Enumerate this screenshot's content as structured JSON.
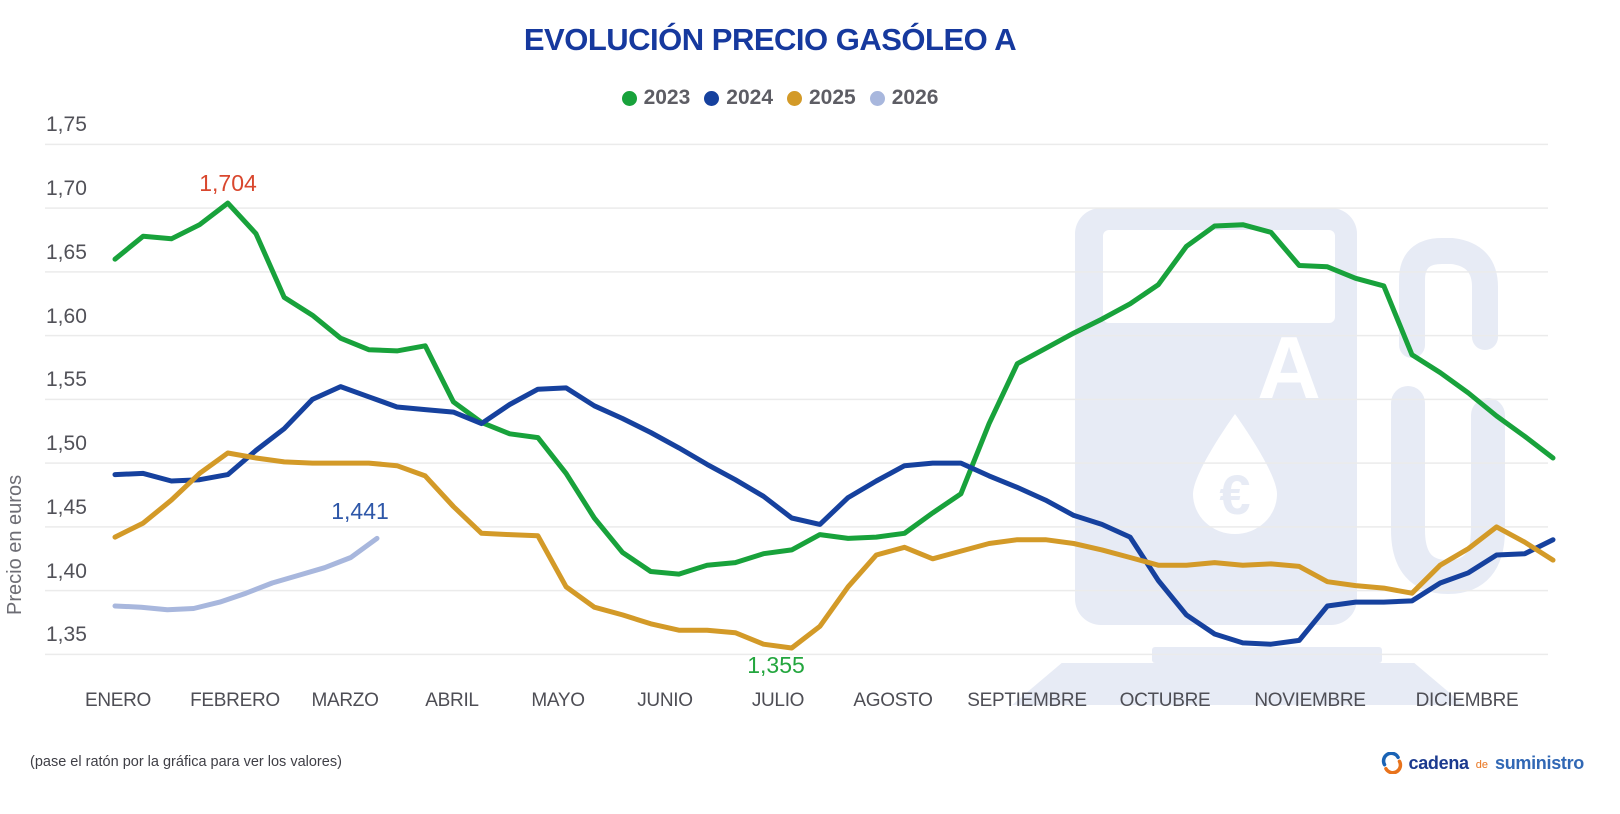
{
  "title": "EVOLUCIÓN PRECIO GASÓLEO A",
  "legend": {
    "items": [
      {
        "label": "2023",
        "color": "#18a23b"
      },
      {
        "label": "2024",
        "color": "#16419e"
      },
      {
        "label": "2025",
        "color": "#d39a28"
      },
      {
        "label": "2026",
        "color": "#a8b7dd"
      }
    ]
  },
  "axes": {
    "y": {
      "label": "Precio en euros",
      "ticks": [
        "1,75",
        "1,70",
        "1,65",
        "1,60",
        "1,55",
        "1,50",
        "1,45",
        "1,40",
        "1,35"
      ]
    },
    "x": {
      "months": [
        "ENERO",
        "FEBRERO",
        "MARZO",
        "ABRIL",
        "MAYO",
        "JUNIO",
        "JULIO",
        "AGOSTO",
        "SEPTIEMBRE",
        "OCTUBRE",
        "NOVIEMBRE",
        "DICIEMBRE"
      ]
    }
  },
  "annotations": [
    {
      "text": "1,704",
      "color": "#d9472e",
      "series": "2023",
      "note": "máximo 2023, febrero"
    },
    {
      "text": "1,441",
      "color": "#2e57a8",
      "series": "2026",
      "note": "último valor 2026, marzo"
    },
    {
      "text": "1,355",
      "color": "#23a63e",
      "series": "2025",
      "note": "mínimo 2025, julio"
    }
  ],
  "footnote": {
    "text": "(pase el ratón por la gráfica para ver los valores)"
  },
  "logo": {
    "word1": "cadena",
    "word2": "de",
    "word3": "suministro",
    "icon": "circular-arrows-icon"
  },
  "watermark": {
    "icon": "fuel-pump-icon",
    "letter": "A",
    "euro": "€",
    "color": "#e7ebf5"
  },
  "chart_data": {
    "type": "line",
    "title": "EVOLUCIÓN PRECIO GASÓLEO A",
    "ylabel": "Precio en euros",
    "xlabel": "",
    "x_unit": "semanas (enero - diciembre)",
    "y_unit": "EUR/litro",
    "ylim": [
      1.35,
      1.75
    ],
    "grid": "horizontal",
    "legend_position": "top",
    "categories": [
      "ENERO",
      "FEBRERO",
      "MARZO",
      "ABRIL",
      "MAYO",
      "JUNIO",
      "JULIO",
      "AGOSTO",
      "SEPTIEMBRE",
      "OCTUBRE",
      "NOVIEMBRE",
      "DICIEMBRE"
    ],
    "annotated_points": [
      {
        "series": "2023",
        "value": 1.704
      },
      {
        "series": "2026",
        "value": 1.441
      },
      {
        "series": "2025",
        "value": 1.355
      }
    ],
    "series": [
      {
        "name": "2023",
        "color": "#18a23b",
        "values": [
          1.66,
          1.678,
          1.676,
          1.687,
          1.704,
          1.68,
          1.63,
          1.616,
          1.598,
          1.589,
          1.588,
          1.592,
          1.548,
          1.532,
          1.523,
          1.52,
          1.492,
          1.457,
          1.43,
          1.415,
          1.413,
          1.42,
          1.422,
          1.429,
          1.432,
          1.444,
          1.441,
          1.442,
          1.445,
          1.461,
          1.476,
          1.531,
          1.578,
          1.59,
          1.602,
          1.613,
          1.625,
          1.64,
          1.67,
          1.686,
          1.687,
          1.681,
          1.655,
          1.654,
          1.645,
          1.639,
          1.585,
          1.571,
          1.555,
          1.537,
          1.521,
          1.504
        ]
      },
      {
        "name": "2024",
        "color": "#16419e",
        "values": [
          1.491,
          1.492,
          1.486,
          1.487,
          1.491,
          1.51,
          1.527,
          1.55,
          1.56,
          1.552,
          1.544,
          1.542,
          1.54,
          1.531,
          1.546,
          1.558,
          1.559,
          1.545,
          1.535,
          1.524,
          1.512,
          1.499,
          1.487,
          1.474,
          1.457,
          1.452,
          1.473,
          1.486,
          1.498,
          1.5,
          1.5,
          1.49,
          1.481,
          1.471,
          1.459,
          1.452,
          1.442,
          1.408,
          1.381,
          1.366,
          1.359,
          1.358,
          1.361,
          1.388,
          1.391,
          1.391,
          1.392,
          1.406,
          1.414,
          1.428,
          1.429,
          1.44
        ]
      },
      {
        "name": "2025",
        "color": "#d39a28",
        "values": [
          1.442,
          1.453,
          1.471,
          1.492,
          1.508,
          1.504,
          1.501,
          1.5,
          1.5,
          1.5,
          1.498,
          1.49,
          1.466,
          1.445,
          1.444,
          1.443,
          1.403,
          1.387,
          1.381,
          1.374,
          1.369,
          1.369,
          1.367,
          1.358,
          1.355,
          1.372,
          1.403,
          1.428,
          1.434,
          1.425,
          1.431,
          1.437,
          1.44,
          1.44,
          1.437,
          1.432,
          1.426,
          1.42,
          1.42,
          1.422,
          1.42,
          1.421,
          1.419,
          1.407,
          1.404,
          1.402,
          1.398,
          1.42,
          1.433,
          1.45,
          1.438,
          1.424
        ]
      },
      {
        "name": "2026",
        "color": "#a8b7dd",
        "values": [
          1.388,
          1.387,
          1.385,
          1.386,
          1.391,
          1.398,
          1.406,
          1.412,
          1.418,
          1.426,
          1.441
        ]
      }
    ]
  }
}
